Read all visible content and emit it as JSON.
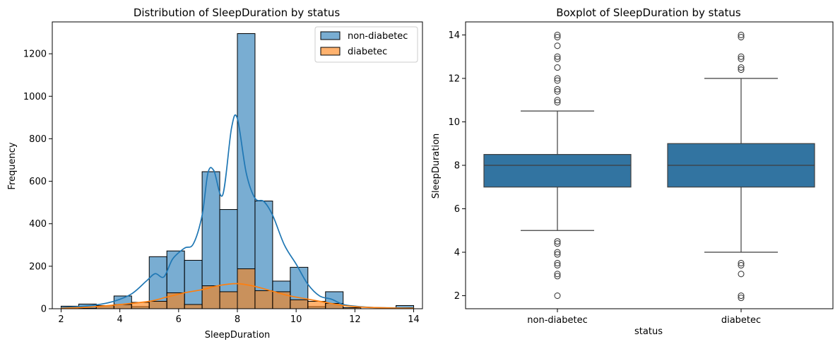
{
  "colors": {
    "non_diabetec": "#1f77b4",
    "diabetec": "#ff7f0e",
    "edge": "#000000",
    "box_fill": "#3274a1",
    "box_line": "#3f3f3f"
  },
  "chart_data": [
    {
      "type": "histogram",
      "title": "Distribution of SleepDuration by status",
      "xlabel": "SleepDuration",
      "ylabel": "Frequency",
      "xlim": [
        1.7,
        14.3
      ],
      "ylim": [
        0,
        1350
      ],
      "xticks": [
        "2",
        "4",
        "6",
        "8",
        "10",
        "12",
        "14"
      ],
      "yticks": [
        "0",
        "200",
        "400",
        "600",
        "800",
        "1000",
        "1200"
      ],
      "legend": {
        "position": "top-right",
        "entries": [
          "non-diabetec",
          "diabetec"
        ]
      },
      "bin_edges": [
        2.0,
        2.6,
        3.2,
        3.8,
        4.4,
        5.0,
        5.6,
        6.2,
        6.8,
        7.4,
        8.0,
        8.6,
        9.2,
        9.8,
        10.4,
        11.0,
        11.6,
        12.2,
        12.8,
        13.4,
        14.0
      ],
      "series": [
        {
          "name": "non-diabetec",
          "values": [
            12,
            22,
            15,
            60,
            10,
            245,
            272,
            228,
            645,
            467,
            1295,
            507,
            130,
            195,
            10,
            80,
            5,
            0,
            0,
            15
          ],
          "kde": [
            [
              2.0,
              5
            ],
            [
              2.6,
              10
            ],
            [
              3.2,
              18
            ],
            [
              3.8,
              35
            ],
            [
              4.4,
              70
            ],
            [
              4.9,
              130
            ],
            [
              5.2,
              165
            ],
            [
              5.5,
              150
            ],
            [
              5.8,
              235
            ],
            [
              6.2,
              285
            ],
            [
              6.5,
              305
            ],
            [
              6.8,
              440
            ],
            [
              7.0,
              640
            ],
            [
              7.2,
              650
            ],
            [
              7.5,
              535
            ],
            [
              7.8,
              850
            ],
            [
              8.0,
              895
            ],
            [
              8.3,
              640
            ],
            [
              8.6,
              520
            ],
            [
              8.9,
              505
            ],
            [
              9.2,
              440
            ],
            [
              9.6,
              300
            ],
            [
              10.0,
              210
            ],
            [
              10.4,
              115
            ],
            [
              10.8,
              60
            ],
            [
              11.2,
              45
            ],
            [
              11.6,
              20
            ],
            [
              12.0,
              12
            ],
            [
              12.6,
              6
            ],
            [
              13.4,
              4
            ],
            [
              14.0,
              3
            ]
          ]
        },
        {
          "name": "diabetec",
          "values": [
            0,
            2,
            15,
            20,
            30,
            35,
            75,
            20,
            108,
            80,
            188,
            85,
            80,
            42,
            35,
            25,
            5,
            0,
            0,
            5
          ],
          "kde": [
            [
              2.0,
              2
            ],
            [
              3.0,
              8
            ],
            [
              4.0,
              20
            ],
            [
              5.0,
              35
            ],
            [
              5.6,
              55
            ],
            [
              6.2,
              75
            ],
            [
              6.8,
              90
            ],
            [
              7.4,
              110
            ],
            [
              8.0,
              118
            ],
            [
              8.6,
              105
            ],
            [
              9.2,
              82
            ],
            [
              9.8,
              60
            ],
            [
              10.4,
              45
            ],
            [
              11.0,
              30
            ],
            [
              11.6,
              15
            ],
            [
              12.2,
              8
            ],
            [
              12.8,
              5
            ],
            [
              13.4,
              3
            ],
            [
              14.0,
              2
            ]
          ]
        }
      ]
    },
    {
      "type": "box",
      "title": "Boxplot of SleepDuration by status",
      "xlabel": "status",
      "ylabel": "SleepDuration",
      "ylim": [
        1.4,
        14.6
      ],
      "yticks": [
        "2",
        "4",
        "6",
        "8",
        "10",
        "12",
        "14"
      ],
      "categories": [
        "non-diabetec",
        "diabetec"
      ],
      "boxes": [
        {
          "q1": 7,
          "median": 8,
          "q3": 8.5,
          "whisker_low": 5,
          "whisker_high": 10.5,
          "outliers": [
            14,
            13.9,
            13.5,
            13,
            12.9,
            12.5,
            12,
            11.9,
            11.5,
            11.4,
            11,
            10.9,
            4.5,
            4.4,
            4,
            3.9,
            3.5,
            3.4,
            3,
            2.9,
            2
          ]
        },
        {
          "q1": 7,
          "median": 8,
          "q3": 9,
          "whisker_low": 4,
          "whisker_high": 12,
          "outliers": [
            14,
            13.9,
            13,
            12.9,
            12.5,
            12.4,
            3.5,
            3.4,
            3,
            2,
            1.9
          ]
        }
      ]
    }
  ]
}
